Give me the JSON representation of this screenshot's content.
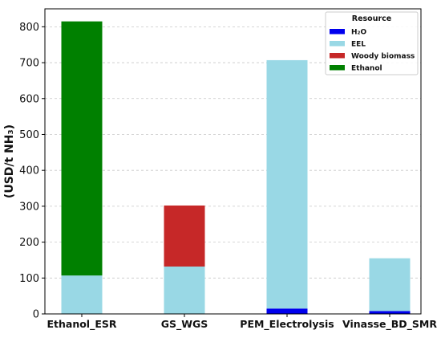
{
  "chart_data": {
    "type": "bar",
    "stacked": true,
    "title": "",
    "xlabel": "",
    "ylabel": "(USD/t NH₃)",
    "ylim": [
      0,
      850
    ],
    "yticks": [
      0,
      100,
      200,
      300,
      400,
      500,
      600,
      700,
      800
    ],
    "grid": "horizontal dashed",
    "legend": {
      "title": "Resource",
      "placement": "top-right"
    },
    "categories": [
      "Ethanol_ESR",
      "GS_WGS",
      "PEM_Electrolysis",
      "Vinasse_BD_SMR"
    ],
    "series": [
      {
        "name": "H₂O",
        "color": "#0000ee",
        "values": [
          0,
          0,
          15,
          8
        ]
      },
      {
        "name": "EEL",
        "color": "#99d8e5",
        "values": [
          107,
          132,
          692,
          147
        ]
      },
      {
        "name": "Woody biomass",
        "color": "#c62828",
        "values": [
          0,
          170,
          0,
          0
        ]
      },
      {
        "name": "Ethanol",
        "color": "#008000",
        "values": [
          708,
          0,
          0,
          0
        ]
      }
    ]
  }
}
